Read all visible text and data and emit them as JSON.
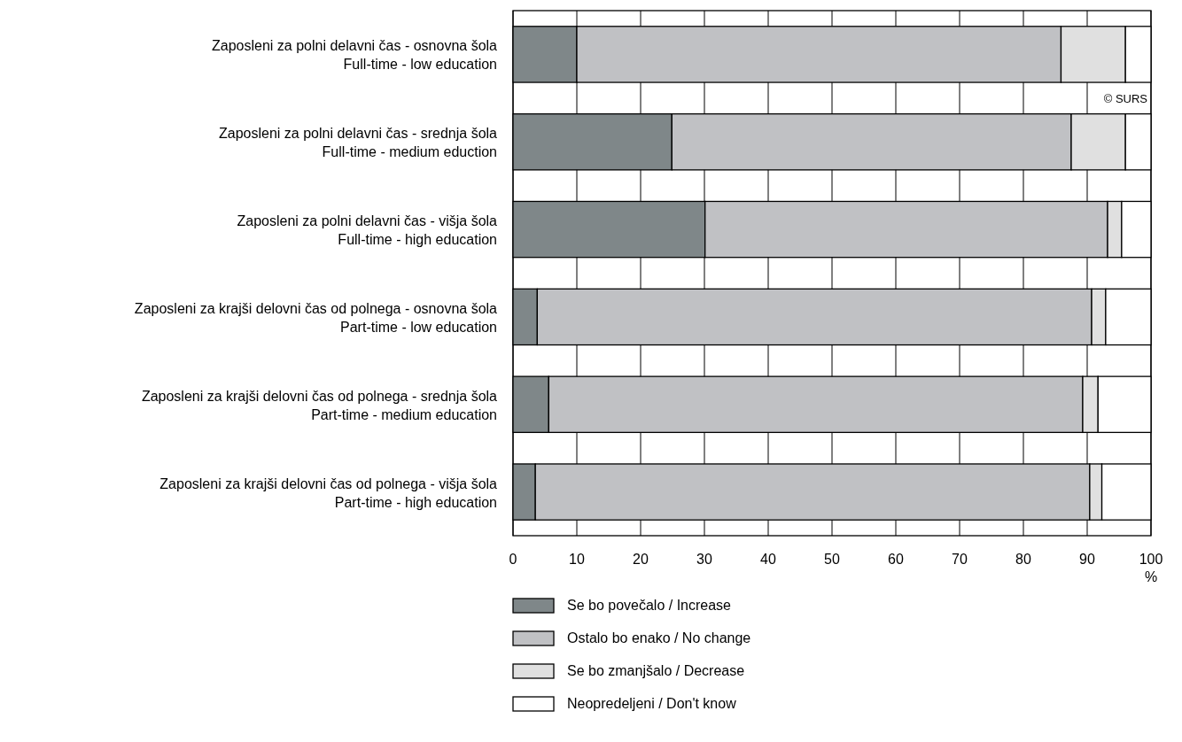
{
  "chart_data": {
    "type": "bar",
    "orientation": "horizontal",
    "stacked": true,
    "categories": [
      "Zaposleni za polni delavni čas - osnovna šola\nFull-time - low education",
      "Zaposleni za polni delavni čas - srednja šola\nFull-time - medium eduction",
      "Zaposleni za polni delavni čas - višja šola\nFull-time - high education",
      "Zaposleni za krajši delovni čas od polnega - osnovna šola\nPart-time - low education",
      "Zaposleni za krajši delovni čas od polnega - srednja šola\nPart-time - medium education",
      "Zaposleni za krajši delovni čas od polnega - višja šola\nPart-time - high education"
    ],
    "series": [
      {
        "name": "Se bo povečalo / Increase",
        "color": "#7f8789",
        "values": [
          10,
          24.9,
          30.1,
          3.8,
          5.6,
          3.5
        ]
      },
      {
        "name": "Ostalo bo enako / No change",
        "color": "#c0c1c4",
        "values": [
          75.9,
          62.6,
          63.1,
          86.9,
          83.7,
          86.9
        ]
      },
      {
        "name": "Se bo zmanjšalo / Decrease",
        "color": "#e0e0e0",
        "values": [
          10.1,
          8.5,
          2.2,
          2.2,
          2.4,
          1.9
        ]
      },
      {
        "name": "Neopredeljeni / Don't know",
        "color": "#ffffff",
        "values": [
          4,
          4,
          4.6,
          7.1,
          8.3,
          7.7
        ]
      }
    ],
    "xlim": [
      0,
      100
    ],
    "xticks": [
      0,
      10,
      20,
      30,
      40,
      50,
      60,
      70,
      80,
      90,
      100
    ],
    "xlabel": "%",
    "grid": "x",
    "legend": "bottom",
    "annotations": [
      "© SURS"
    ]
  }
}
